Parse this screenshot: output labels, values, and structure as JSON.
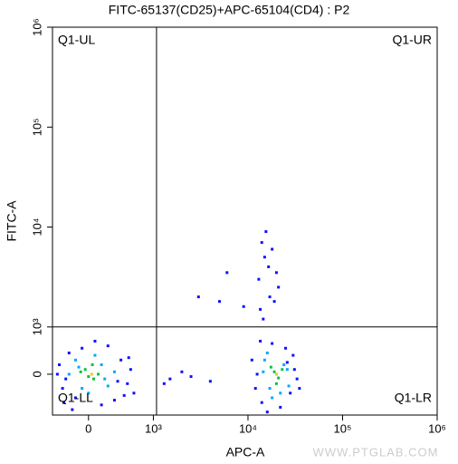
{
  "chart_data": {
    "type": "scatter",
    "title": "FITC-65137(CD25)+APC-65104(CD4) : P2",
    "x_label": "APC-A",
    "y_label": "FITC-A",
    "xscale": "biexponential",
    "yscale": "biexponential",
    "xlim": [
      -555,
      1000000
    ],
    "ylim": [
      -865,
      1000000
    ],
    "xticks": [
      0,
      {
        "value": 1000,
        "label": "10³"
      },
      {
        "value": 10000,
        "label": "10⁴"
      },
      {
        "value": 100000,
        "label": "10⁵"
      },
      {
        "value": 1000000,
        "label": "10⁶"
      }
    ],
    "yticks": [
      0,
      {
        "value": 1000,
        "label": "10³"
      },
      {
        "value": 10000,
        "label": "10⁴"
      },
      {
        "value": 100000,
        "label": "10⁵"
      },
      {
        "value": 1000000,
        "label": "10⁶"
      }
    ],
    "gate": {
      "x": 1080,
      "y": 1000,
      "labels": [
        "Q1-UL",
        "Q1-UR",
        "Q1-LL",
        "Q1-LR"
      ]
    },
    "watermark": "WWW.PTGLAB.COM",
    "series": [
      {
        "color": "#1010ff",
        "x": [
          -450,
          -400,
          -300,
          -200,
          -350,
          500,
          600,
          650,
          700,
          -100,
          200,
          400,
          -480,
          300,
          550,
          -250,
          100,
          620,
          -380,
          450,
          11000,
          12000,
          14000,
          30000,
          33000,
          28000,
          13500,
          16000,
          25000,
          31000,
          12500,
          18000,
          22000,
          35000,
          26000,
          13000,
          15000,
          17000,
          14000,
          19000,
          16500,
          21000,
          13500,
          18000,
          15500,
          20000,
          14500,
          1500,
          2500,
          3000,
          5000,
          4000,
          6000,
          2000,
          1300,
          9000
        ],
        "y": [
          200,
          -300,
          450,
          -500,
          -100,
          300,
          -200,
          100,
          -400,
          550,
          -650,
          -550,
          0,
          600,
          -450,
          -750,
          700,
          350,
          -600,
          -150,
          300,
          -300,
          -600,
          400,
          -100,
          -400,
          700,
          -800,
          550,
          100,
          0,
          650,
          -700,
          -300,
          250,
          3000,
          5000,
          2000,
          7000,
          1800,
          4000,
          2500,
          1500,
          6000,
          9000,
          3500,
          1200,
          -100,
          -50,
          2000,
          1800,
          -150,
          3500,
          50,
          -200,
          1600
        ]
      },
      {
        "color": "#00a8ff",
        "x": [
          -200,
          -100,
          200,
          300,
          -300,
          400,
          100,
          0,
          -150,
          250,
          15000,
          17000,
          24000,
          27000,
          20000,
          16000,
          22000,
          26000,
          18000,
          14500
        ],
        "y": [
          300,
          -300,
          200,
          -250,
          0,
          50,
          400,
          -400,
          150,
          -100,
          300,
          -300,
          200,
          -250,
          0,
          450,
          -400,
          100,
          -500,
          50
        ]
      },
      {
        "color": "#10c040",
        "x": [
          -50,
          80,
          150,
          -120,
          0,
          60,
          19000,
          21000,
          23000,
          20000,
          17500
        ],
        "y": [
          100,
          -100,
          0,
          50,
          -50,
          200,
          50,
          -80,
          100,
          -200,
          150
        ]
      },
      {
        "color": "#e8d020",
        "x": [
          50,
          20000
        ],
        "y": [
          0,
          0
        ]
      }
    ]
  }
}
